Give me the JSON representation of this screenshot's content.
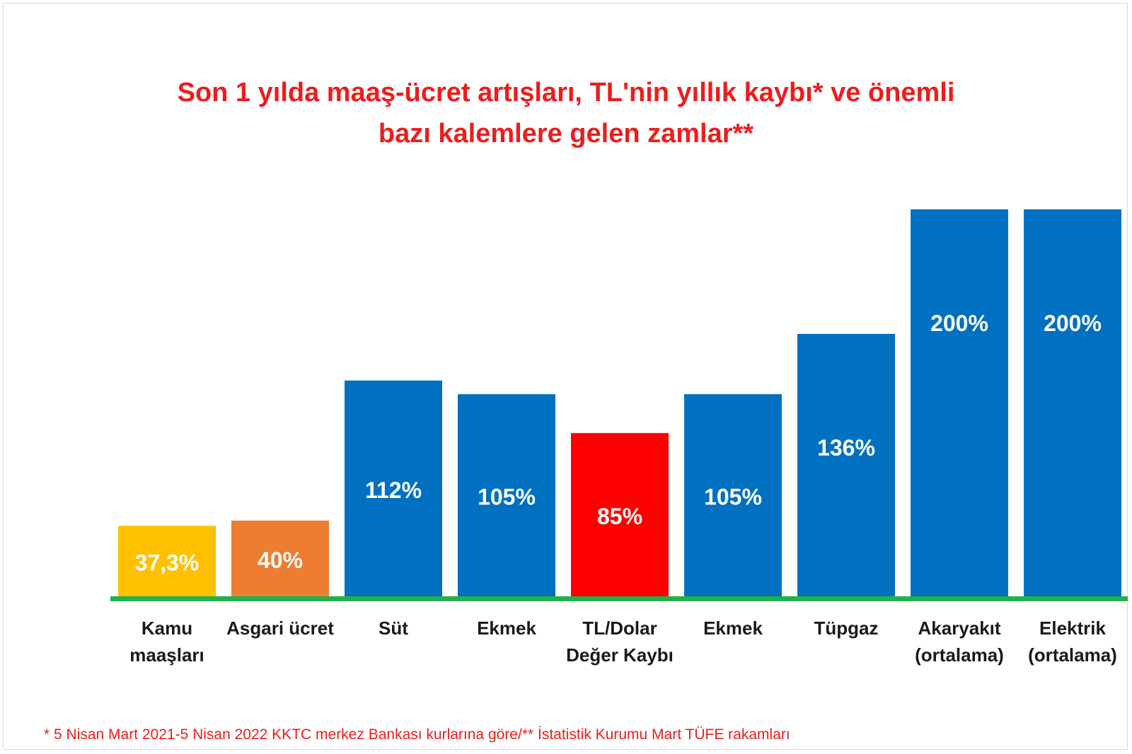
{
  "chart_data": {
    "type": "bar",
    "title_lines": [
      "Son 1 yılda maaş-ücret artışları, TL'nin yıllık kaybı* ve önemli",
      "bazı kalemlere gelen zamlar**"
    ],
    "categories": [
      [
        "Kamu",
        "maaşları"
      ],
      [
        "Asgari ücret"
      ],
      [
        "Süt"
      ],
      [
        "Ekmek"
      ],
      [
        "TL/Dolar",
        "Değer Kaybı"
      ],
      [
        "Ekmek"
      ],
      [
        "Tüpgaz"
      ],
      [
        "Akaryakıt",
        "(ortalama)"
      ],
      [
        "Elektrik",
        "(ortalama)"
      ]
    ],
    "values": [
      37.3,
      40,
      112,
      105,
      85,
      105,
      136,
      200,
      200
    ],
    "value_labels": [
      "37,3%",
      "40%",
      "112%",
      "105%",
      "85%",
      "105%",
      "136%",
      "200%",
      "200%"
    ],
    "colors": [
      "#ffc000",
      "#ed7d31",
      "#0070c0",
      "#0070c0",
      "#ff0000",
      "#0070c0",
      "#0070c0",
      "#0070c0",
      "#0070c0"
    ],
    "ylim": [
      0,
      200
    ],
    "grid": false,
    "legend": "none",
    "baseline_color": "#22b14c",
    "label_color": "#ffffff",
    "title_color": "#ee1c1c",
    "footnote": "* 5 Nisan Mart 2021-5 Nisan 2022  KKTC merkez Bankası kurlarına göre/** İstatistik Kurumu Mart TÜFE rakamları"
  }
}
